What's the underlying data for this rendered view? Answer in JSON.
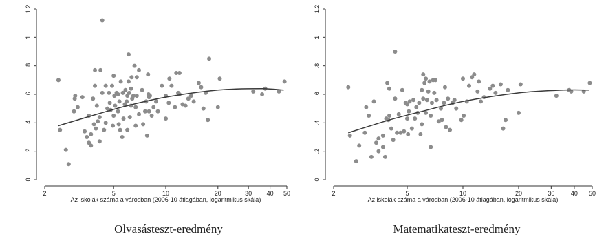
{
  "colors": {
    "points": "#8c8c8c",
    "fit_line": "#3a3a3a",
    "axis": "#333333",
    "text": "#222222"
  },
  "chart_data": [
    {
      "type": "scatter",
      "title": "Olvasásteszt-eredmény",
      "xlabel": "Az iskolák száma a városban (2006-10 átlagában, logaritmikus skála)",
      "ylabel": "",
      "x_scale": "log",
      "xlim": [
        2,
        50
      ],
      "ylim": [
        0,
        1.2
      ],
      "x_ticks": [
        2,
        5,
        10,
        20,
        30,
        40,
        50
      ],
      "y_ticks": [
        0,
        0.2,
        0.4,
        0.6,
        0.8,
        1.0,
        1.2
      ],
      "y_tick_labels": [
        "0",
        ".2",
        ".4",
        ".6",
        ".8",
        "1",
        "1.2"
      ],
      "grid": false,
      "legend": "none",
      "points": [
        [
          2.4,
          0.7
        ],
        [
          2.45,
          0.35
        ],
        [
          2.65,
          0.21
        ],
        [
          2.75,
          0.11
        ],
        [
          2.95,
          0.48
        ],
        [
          2.98,
          0.57
        ],
        [
          3.0,
          0.59
        ],
        [
          3.1,
          0.51
        ],
        [
          3.3,
          0.58
        ],
        [
          3.4,
          0.34
        ],
        [
          3.5,
          0.3
        ],
        [
          3.6,
          0.26
        ],
        [
          3.6,
          0.45
        ],
        [
          3.7,
          0.24
        ],
        [
          3.7,
          0.32
        ],
        [
          3.8,
          0.57
        ],
        [
          3.85,
          0.39
        ],
        [
          3.9,
          0.77
        ],
        [
          3.9,
          0.66
        ],
        [
          3.95,
          0.36
        ],
        [
          4.0,
          0.52
        ],
        [
          4.05,
          0.41
        ],
        [
          4.15,
          0.44
        ],
        [
          4.15,
          0.27
        ],
        [
          4.2,
          0.77
        ],
        [
          4.3,
          0.61
        ],
        [
          4.3,
          1.12
        ],
        [
          4.4,
          0.35
        ],
        [
          4.5,
          0.4
        ],
        [
          4.5,
          0.66
        ],
        [
          4.6,
          0.5
        ],
        [
          4.7,
          0.61
        ],
        [
          4.75,
          0.54
        ],
        [
          4.8,
          0.49
        ],
        [
          4.9,
          0.66
        ],
        [
          4.95,
          0.38
        ],
        [
          5.0,
          0.45
        ],
        [
          5.0,
          0.73
        ],
        [
          5.05,
          0.59
        ],
        [
          5.1,
          0.52
        ],
        [
          5.2,
          0.61
        ],
        [
          5.3,
          0.48
        ],
        [
          5.3,
          0.6
        ],
        [
          5.35,
          0.39
        ],
        [
          5.4,
          0.55
        ],
        [
          5.45,
          0.35
        ],
        [
          5.5,
          0.69
        ],
        [
          5.6,
          0.3
        ],
        [
          5.65,
          0.61
        ],
        [
          5.7,
          0.43
        ],
        [
          5.8,
          0.53
        ],
        [
          5.85,
          0.63
        ],
        [
          5.95,
          0.55
        ],
        [
          6.0,
          0.59
        ],
        [
          6.0,
          0.35
        ],
        [
          6.1,
          0.88
        ],
        [
          6.1,
          0.69
        ],
        [
          6.15,
          0.61
        ],
        [
          6.2,
          0.44
        ],
        [
          6.3,
          0.64
        ],
        [
          6.3,
          0.52
        ],
        [
          6.35,
          0.72
        ],
        [
          6.4,
          0.57
        ],
        [
          6.5,
          0.59
        ],
        [
          6.6,
          0.8
        ],
        [
          6.7,
          0.38
        ],
        [
          6.7,
          0.51
        ],
        [
          6.8,
          0.59
        ],
        [
          6.8,
          0.72
        ],
        [
          7.0,
          0.77
        ],
        [
          7.0,
          0.46
        ],
        [
          7.3,
          0.63
        ],
        [
          7.4,
          0.39
        ],
        [
          7.6,
          0.48
        ],
        [
          7.7,
          0.55
        ],
        [
          7.8,
          0.31
        ],
        [
          7.9,
          0.74
        ],
        [
          7.95,
          0.6
        ],
        [
          8.0,
          0.48
        ],
        [
          8.0,
          0.58
        ],
        [
          8.1,
          0.59
        ],
        [
          8.3,
          0.45
        ],
        [
          8.5,
          0.51
        ],
        [
          8.8,
          0.55
        ],
        [
          9.0,
          0.48
        ],
        [
          9.5,
          0.66
        ],
        [
          10.0,
          0.43
        ],
        [
          10.0,
          0.59
        ],
        [
          10.4,
          0.54
        ],
        [
          10.5,
          0.71
        ],
        [
          10.8,
          0.66
        ],
        [
          11.3,
          0.51
        ],
        [
          11.5,
          0.75
        ],
        [
          11.8,
          0.61
        ],
        [
          12.0,
          0.75
        ],
        [
          12.0,
          0.6
        ],
        [
          12.5,
          0.53
        ],
        [
          13.0,
          0.52
        ],
        [
          13.5,
          0.57
        ],
        [
          14.0,
          0.59
        ],
        [
          14.5,
          0.55
        ],
        [
          15.5,
          0.68
        ],
        [
          16.0,
          0.65
        ],
        [
          16.5,
          0.5
        ],
        [
          17.0,
          0.61
        ],
        [
          17.5,
          0.42
        ],
        [
          17.8,
          0.85
        ],
        [
          20.0,
          0.51
        ],
        [
          20.5,
          0.71
        ],
        [
          32.0,
          0.62
        ],
        [
          36.0,
          0.6
        ],
        [
          37.5,
          0.64
        ],
        [
          45.0,
          0.62
        ],
        [
          48.5,
          0.69
        ]
      ],
      "fit_line": {
        "x": [
          2.4,
          4,
          6,
          10,
          20,
          35,
          48
        ],
        "y": [
          0.38,
          0.46,
          0.52,
          0.58,
          0.63,
          0.64,
          0.63
        ]
      }
    },
    {
      "type": "scatter",
      "title": "Matematikateszt-eredmény",
      "xlabel": "Az iskolák száma a városban (2006-10 átlagában, logaritmikus skála)",
      "ylabel": "",
      "x_scale": "log",
      "xlim": [
        2,
        50
      ],
      "ylim": [
        0,
        1.2
      ],
      "x_ticks": [
        2,
        5,
        10,
        20,
        30,
        40,
        50
      ],
      "y_ticks": [
        0,
        0.2,
        0.4,
        0.6,
        0.8,
        1.0,
        1.2
      ],
      "y_tick_labels": [
        "0",
        ".2",
        ".4",
        ".6",
        ".8",
        "1",
        "1.2"
      ],
      "grid": false,
      "legend": "none",
      "points": [
        [
          2.4,
          0.65
        ],
        [
          2.45,
          0.31
        ],
        [
          2.65,
          0.13
        ],
        [
          2.75,
          0.24
        ],
        [
          2.95,
          0.33
        ],
        [
          3.0,
          0.51
        ],
        [
          3.1,
          0.45
        ],
        [
          3.2,
          0.16
        ],
        [
          3.3,
          0.55
        ],
        [
          3.4,
          0.26
        ],
        [
          3.5,
          0.29
        ],
        [
          3.5,
          0.2
        ],
        [
          3.7,
          0.23
        ],
        [
          3.7,
          0.31
        ],
        [
          3.8,
          0.16
        ],
        [
          3.85,
          0.43
        ],
        [
          3.9,
          0.68
        ],
        [
          3.95,
          0.42
        ],
        [
          4.0,
          0.64
        ],
        [
          4.0,
          0.45
        ],
        [
          4.1,
          0.36
        ],
        [
          4.2,
          0.28
        ],
        [
          4.3,
          0.9
        ],
        [
          4.3,
          0.57
        ],
        [
          4.4,
          0.33
        ],
        [
          4.5,
          0.46
        ],
        [
          4.6,
          0.33
        ],
        [
          4.7,
          0.63
        ],
        [
          4.8,
          0.34
        ],
        [
          4.9,
          0.54
        ],
        [
          5.0,
          0.53
        ],
        [
          5.0,
          0.43
        ],
        [
          5.05,
          0.32
        ],
        [
          5.1,
          0.48
        ],
        [
          5.15,
          0.55
        ],
        [
          5.3,
          0.36
        ],
        [
          5.4,
          0.56
        ],
        [
          5.5,
          0.43
        ],
        [
          5.6,
          0.51
        ],
        [
          5.7,
          0.47
        ],
        [
          5.8,
          0.54
        ],
        [
          5.9,
          0.32
        ],
        [
          6.0,
          0.63
        ],
        [
          6.0,
          0.39
        ],
        [
          6.1,
          0.57
        ],
        [
          6.1,
          0.74
        ],
        [
          6.2,
          0.68
        ],
        [
          6.3,
          0.47
        ],
        [
          6.3,
          0.71
        ],
        [
          6.4,
          0.56
        ],
        [
          6.5,
          0.62
        ],
        [
          6.6,
          0.69
        ],
        [
          6.7,
          0.45
        ],
        [
          6.7,
          0.23
        ],
        [
          6.8,
          0.54
        ],
        [
          6.9,
          0.7
        ],
        [
          7.0,
          0.61
        ],
        [
          7.1,
          0.7
        ],
        [
          7.2,
          0.56
        ],
        [
          7.4,
          0.41
        ],
        [
          7.6,
          0.5
        ],
        [
          7.7,
          0.42
        ],
        [
          7.9,
          0.54
        ],
        [
          8.0,
          0.65
        ],
        [
          8.1,
          0.37
        ],
        [
          8.3,
          0.57
        ],
        [
          8.5,
          0.35
        ],
        [
          8.8,
          0.54
        ],
        [
          9.0,
          0.56
        ],
        [
          9.2,
          0.5
        ],
        [
          9.8,
          0.42
        ],
        [
          10.0,
          0.71
        ],
        [
          10.1,
          0.45
        ],
        [
          10.5,
          0.55
        ],
        [
          10.8,
          0.66
        ],
        [
          11.2,
          0.72
        ],
        [
          11.5,
          0.74
        ],
        [
          12.0,
          0.62
        ],
        [
          12.2,
          0.69
        ],
        [
          12.5,
          0.55
        ],
        [
          13.0,
          0.58
        ],
        [
          14.0,
          0.64
        ],
        [
          14.5,
          0.66
        ],
        [
          15.0,
          0.61
        ],
        [
          16.0,
          0.67
        ],
        [
          16.5,
          0.36
        ],
        [
          17.0,
          0.42
        ],
        [
          17.5,
          0.63
        ],
        [
          20.0,
          0.47
        ],
        [
          20.5,
          0.67
        ],
        [
          32.0,
          0.59
        ],
        [
          37.5,
          0.63
        ],
        [
          38.5,
          0.62
        ],
        [
          45.0,
          0.62
        ],
        [
          48.5,
          0.68
        ]
      ],
      "fit_line": {
        "x": [
          2.4,
          4,
          6,
          10,
          20,
          35,
          48
        ],
        "y": [
          0.33,
          0.42,
          0.48,
          0.55,
          0.61,
          0.63,
          0.63
        ]
      }
    }
  ]
}
